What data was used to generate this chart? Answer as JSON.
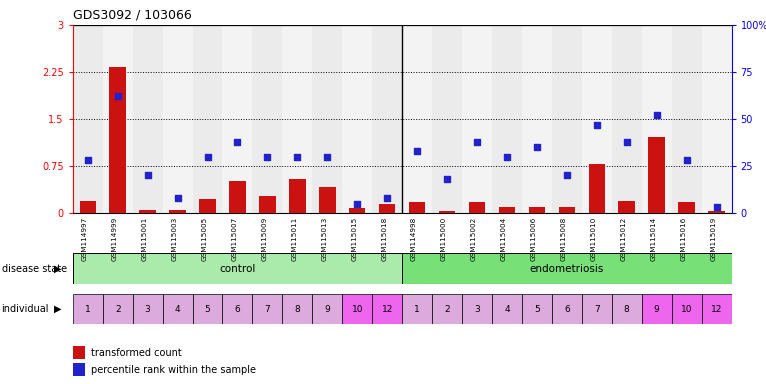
{
  "title": "GDS3092 / 103066",
  "samples": [
    "GSM114997",
    "GSM114999",
    "GSM115001",
    "GSM115003",
    "GSM115005",
    "GSM115007",
    "GSM115009",
    "GSM115011",
    "GSM115013",
    "GSM115015",
    "GSM115018",
    "GSM114998",
    "GSM115000",
    "GSM115002",
    "GSM115004",
    "GSM115006",
    "GSM115008",
    "GSM115010",
    "GSM115012",
    "GSM115014",
    "GSM115016",
    "GSM115019"
  ],
  "transformed_count": [
    0.2,
    2.33,
    0.05,
    0.05,
    0.22,
    0.52,
    0.28,
    0.55,
    0.42,
    0.08,
    0.15,
    0.18,
    0.04,
    0.18,
    0.1,
    0.1,
    0.1,
    0.78,
    0.2,
    1.22,
    0.18,
    0.04
  ],
  "percentile_rank": [
    28,
    62,
    20,
    8,
    30,
    38,
    30,
    30,
    30,
    5,
    8,
    33,
    18,
    38,
    30,
    35,
    20,
    47,
    38,
    52,
    28,
    3
  ],
  "individuals_control": [
    "1",
    "2",
    "3",
    "4",
    "5",
    "6",
    "7",
    "8",
    "9",
    "10",
    "12"
  ],
  "individuals_endometriosis": [
    "1",
    "2",
    "3",
    "4",
    "5",
    "6",
    "7",
    "8",
    "9",
    "10",
    "12"
  ],
  "disease_state_control": "control",
  "disease_state_endo": "endometriosis",
  "bar_color": "#cc1111",
  "scatter_color": "#2222cc",
  "ylim_left": [
    0,
    3
  ],
  "ylim_right": [
    0,
    100
  ],
  "yticks_left": [
    0,
    0.75,
    1.5,
    2.25,
    3
  ],
  "yticks_right": [
    0,
    25,
    50,
    75,
    100
  ],
  "ytick_labels_left": [
    "0",
    "0.75",
    "1.5",
    "2.25",
    "3"
  ],
  "ytick_labels_right": [
    "0",
    "25",
    "50",
    "75",
    "100%"
  ],
  "hlines": [
    0.75,
    1.5,
    2.25
  ],
  "legend_items": [
    "transformed count",
    "percentile rank within the sample"
  ],
  "legend_colors": [
    "#cc1111",
    "#2222cc"
  ],
  "ctrl_color_light": "#c8f0c8",
  "ctrl_color_dark": "#aae8aa",
  "endo_color_light": "#88ee88",
  "endo_color_dark": "#66dd66",
  "indiv_ctrl_colors": [
    "#ddaadd",
    "#ddaadd",
    "#ddaadd",
    "#ddaadd",
    "#ddaadd",
    "#ddaadd",
    "#ddaadd",
    "#ddaadd",
    "#ddaadd",
    "#ee66ee",
    "#ee66ee"
  ],
  "indiv_endo_colors": [
    "#ddaadd",
    "#ddaadd",
    "#ddaadd",
    "#ddaadd",
    "#ddaadd",
    "#ddaadd",
    "#ddaadd",
    "#ddaadd",
    "#ee66ee",
    "#ee66ee",
    "#ee66ee"
  ]
}
